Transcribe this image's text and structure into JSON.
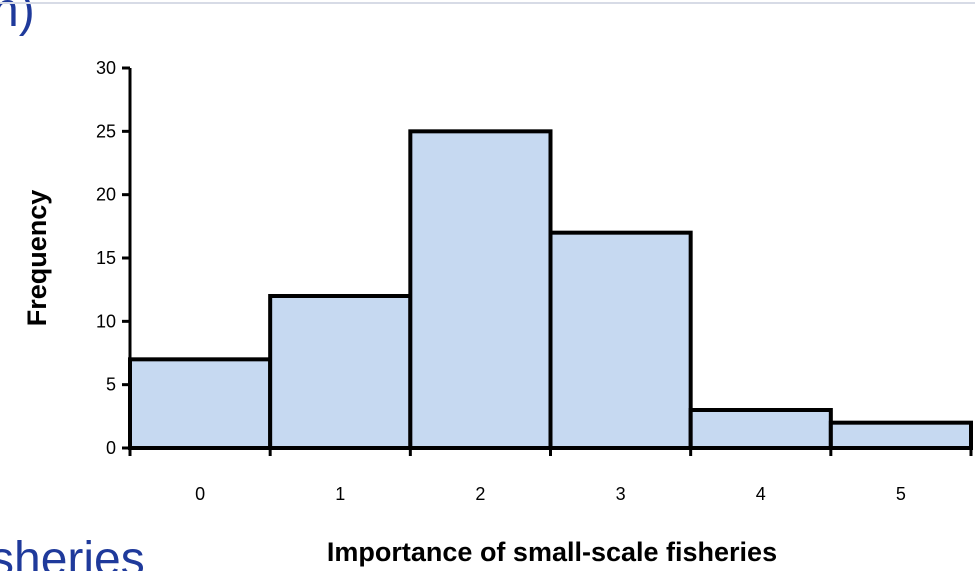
{
  "slide_fragments": {
    "top_left": "h)",
    "bottom_left": "sheries"
  },
  "colors": {
    "bar_fill": "#c6d9f1",
    "bar_stroke": "#000000",
    "slide_text": "#1f3a9b"
  },
  "chart_data": {
    "type": "bar",
    "title": "",
    "xlabel": "Importance of small-scale fisheries",
    "ylabel": "Frequency",
    "categories": [
      "0",
      "1",
      "2",
      "3",
      "4",
      "5"
    ],
    "values": [
      7,
      12,
      25,
      17,
      3,
      2
    ],
    "ylim": [
      0,
      30
    ],
    "yticks": [
      0,
      5,
      10,
      15,
      20,
      25,
      30
    ],
    "grid": false,
    "legend": "none"
  }
}
